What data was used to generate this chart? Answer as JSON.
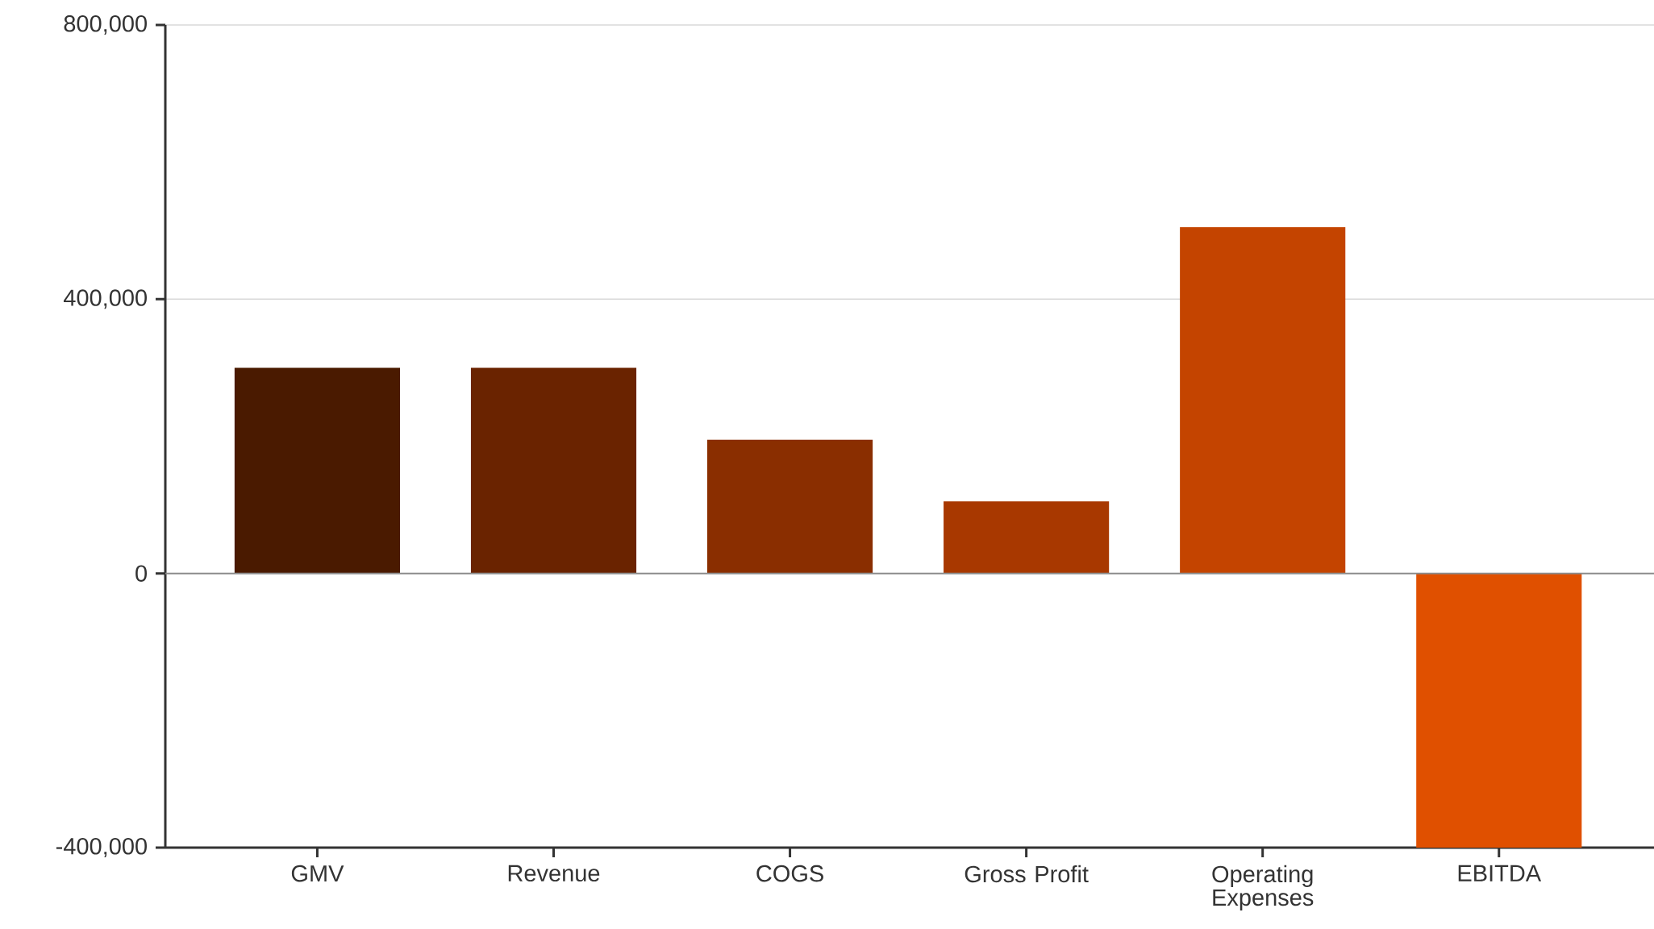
{
  "chart_data": {
    "type": "bar",
    "categories": [
      "GMV",
      "Revenue",
      "COGS",
      "Gross Profit",
      "Operating Expenses",
      "EBITDA"
    ],
    "values": [
      300000,
      300000,
      195000,
      105000,
      505000,
      -400000
    ],
    "colors": [
      "#4a1a00",
      "#6a2300",
      "#8a2e00",
      "#a83800",
      "#c44400",
      "#e05000"
    ],
    "ylim": [
      -400000,
      800000
    ],
    "yticks": [
      {
        "value": -400000,
        "label": "-400,000"
      },
      {
        "value": 0,
        "label": "0"
      },
      {
        "value": 400000,
        "label": "400,000"
      },
      {
        "value": 800000,
        "label": "800,000"
      }
    ],
    "grid": "y"
  }
}
